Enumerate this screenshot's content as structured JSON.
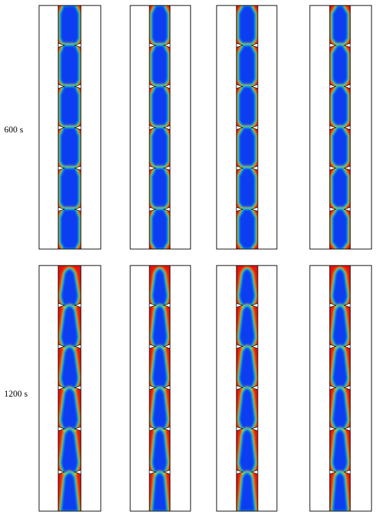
{
  "rows": [
    {
      "label": "600 s"
    },
    {
      "label": "1200 s"
    }
  ]
}
